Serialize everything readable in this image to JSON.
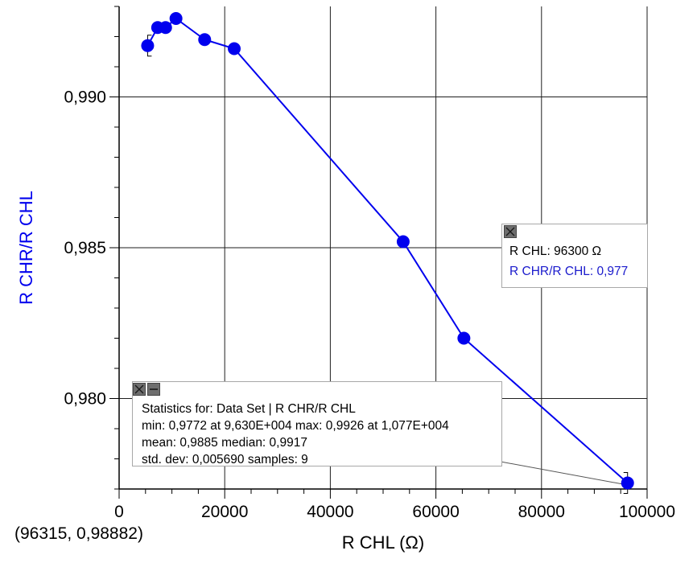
{
  "chart_data": {
    "type": "line",
    "x": [
      5400,
      7300,
      8800,
      10770,
      16200,
      21800,
      53800,
      65300,
      96300
    ],
    "series": [
      {
        "values": [
          0.9917,
          0.9923,
          0.9923,
          0.9926,
          0.9919,
          0.9916,
          0.9852,
          0.982,
          0.9772
        ]
      }
    ],
    "xlabel": "R CHL (Ω)",
    "ylabel": "R CHR/R CHL",
    "xlim": [
      0,
      100000
    ],
    "ylim": [
      0.977,
      0.993
    ],
    "xticks": [
      0,
      20000,
      40000,
      60000,
      80000,
      100000
    ],
    "xtick_labels": [
      "0",
      "20000",
      "40000",
      "60000",
      "80000",
      "100000"
    ],
    "yticks": [
      0.98,
      0.985,
      0.99
    ],
    "ytick_labels": [
      "0,980",
      "0,985",
      "0,990"
    ],
    "grid": true,
    "line_color": "#0000ee",
    "ylabel_color": "#0000ee"
  },
  "inspector": {
    "x_line": "R CHL: 96300 Ω",
    "y_line": "R CHR/R CHL: 0,977",
    "y_color": "#1a1acc"
  },
  "stats": {
    "title": "Statistics for: Data Set | R CHR/R CHL",
    "line1": "min: 0,9772 at 9,630E+004 max: 0,9926 at 1,077E+004",
    "line2": "mean: 0,9885 median: 0,9917",
    "line3": "std. dev: 0,005690 samples: 9",
    "range_x": [
      5400,
      96300
    ]
  },
  "coord_readout": "(96315, 0,98882)"
}
